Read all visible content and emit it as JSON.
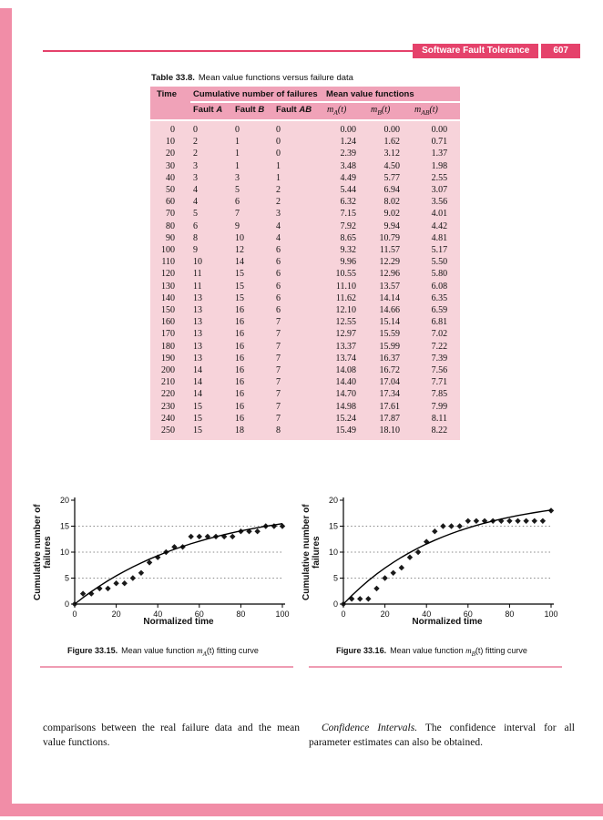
{
  "colors": {
    "accent_dark": "#e5426b",
    "accent_light": "#f18da7",
    "table_header_bg": "#f0a2b8",
    "table_body_bg": "#f7d3da",
    "caption_rule": "#ef9cb3"
  },
  "header": {
    "title": "Software Fault Tolerance",
    "page_number": "607"
  },
  "table": {
    "caption_label": "Table 33.8.",
    "caption_text": "Mean value functions versus failure data",
    "headers": {
      "time": "Time",
      "group_cumulative": "Cumulative number of failures",
      "group_mean": "Mean value functions",
      "fault": [
        {
          "pre": "Fault ",
          "it": "A"
        },
        {
          "pre": "Fault ",
          "it": "B"
        },
        {
          "pre": "Fault ",
          "it": "AB"
        }
      ],
      "math": [
        {
          "base": "m",
          "sub": "A",
          "arg": "(t)"
        },
        {
          "base": "m",
          "sub": "B",
          "arg": "(t)"
        },
        {
          "base": "m",
          "sub": "AB",
          "arg": "(t)"
        }
      ]
    },
    "rows": [
      [
        "0",
        "0",
        "0",
        "0",
        "0.00",
        "0.00",
        "0.00"
      ],
      [
        "10",
        "2",
        "1",
        "0",
        "1.24",
        "1.62",
        "0.71"
      ],
      [
        "20",
        "2",
        "1",
        "0",
        "2.39",
        "3.12",
        "1.37"
      ],
      [
        "30",
        "3",
        "1",
        "1",
        "3.48",
        "4.50",
        "1.98"
      ],
      [
        "40",
        "3",
        "3",
        "1",
        "4.49",
        "5.77",
        "2.55"
      ],
      [
        "50",
        "4",
        "5",
        "2",
        "5.44",
        "6.94",
        "3.07"
      ],
      [
        "60",
        "4",
        "6",
        "2",
        "6.32",
        "8.02",
        "3.56"
      ],
      [
        "70",
        "5",
        "7",
        "3",
        "7.15",
        "9.02",
        "4.01"
      ],
      [
        "80",
        "6",
        "9",
        "4",
        "7.92",
        "9.94",
        "4.42"
      ],
      [
        "90",
        "8",
        "10",
        "4",
        "8.65",
        "10.79",
        "4.81"
      ],
      [
        "100",
        "9",
        "12",
        "6",
        "9.32",
        "11.57",
        "5.17"
      ],
      [
        "110",
        "10",
        "14",
        "6",
        "9.96",
        "12.29",
        "5.50"
      ],
      [
        "120",
        "11",
        "15",
        "6",
        "10.55",
        "12.96",
        "5.80"
      ],
      [
        "130",
        "11",
        "15",
        "6",
        "11.10",
        "13.57",
        "6.08"
      ],
      [
        "140",
        "13",
        "15",
        "6",
        "11.62",
        "14.14",
        "6.35"
      ],
      [
        "150",
        "13",
        "16",
        "6",
        "12.10",
        "14.66",
        "6.59"
      ],
      [
        "160",
        "13",
        "16",
        "7",
        "12.55",
        "15.14",
        "6.81"
      ],
      [
        "170",
        "13",
        "16",
        "7",
        "12.97",
        "15.59",
        "7.02"
      ],
      [
        "180",
        "13",
        "16",
        "7",
        "13.37",
        "15.99",
        "7.22"
      ],
      [
        "190",
        "13",
        "16",
        "7",
        "13.74",
        "16.37",
        "7.39"
      ],
      [
        "200",
        "14",
        "16",
        "7",
        "14.08",
        "16.72",
        "7.56"
      ],
      [
        "210",
        "14",
        "16",
        "7",
        "14.40",
        "17.04",
        "7.71"
      ],
      [
        "220",
        "14",
        "16",
        "7",
        "14.70",
        "17.34",
        "7.85"
      ],
      [
        "230",
        "15",
        "16",
        "7",
        "14.98",
        "17.61",
        "7.99"
      ],
      [
        "240",
        "15",
        "16",
        "7",
        "15.24",
        "17.87",
        "8.11"
      ],
      [
        "250",
        "15",
        "18",
        "8",
        "15.49",
        "18.10",
        "8.22"
      ]
    ]
  },
  "figures": [
    {
      "label": "Figure 33.15.",
      "pre": "Mean value function ",
      "base": "m",
      "sub": "A",
      "post": "(t) fitting curve"
    },
    {
      "label": "Figure 33.16.",
      "pre": "Mean value function ",
      "base": "m",
      "sub": "B",
      "post": "(t) fitting curve"
    }
  ],
  "body_text": {
    "left": "comparisons between the real failure data and the mean value functions.",
    "right_italic": "Confidence Intervals.",
    "right_rest": " The confidence interval for all parameter estimates can also be obtained."
  },
  "chart_data": [
    {
      "type": "scatter",
      "title": "Figure 33.15. Mean value function mA(t) fitting curve",
      "xlabel": "Normalized time",
      "ylabel": "Cumulative number of failures",
      "xlim": [
        0,
        100
      ],
      "ylim": [
        0,
        20
      ],
      "xticks": [
        0,
        20,
        40,
        60,
        80,
        100
      ],
      "yticks": [
        0,
        5,
        10,
        15,
        20
      ],
      "gridlines_y": [
        5,
        10,
        15
      ],
      "grid": "dotted-horizontal",
      "legend": "none",
      "x": [
        0,
        4,
        8,
        12,
        16,
        20,
        24,
        28,
        32,
        36,
        40,
        44,
        48,
        52,
        56,
        60,
        64,
        68,
        72,
        76,
        80,
        84,
        88,
        92,
        96,
        100
      ],
      "series": [
        {
          "name": "Fault A cumulative failures",
          "style": "scatter-diamond",
          "values": [
            0,
            2,
            2,
            3,
            3,
            4,
            4,
            5,
            6,
            8,
            9,
            10,
            11,
            11,
            13,
            13,
            13,
            13,
            13,
            13,
            14,
            14,
            14,
            15,
            15,
            15
          ]
        },
        {
          "name": "mA(t) fitted curve",
          "style": "line",
          "values": [
            0,
            1.24,
            2.39,
            3.48,
            4.49,
            5.44,
            6.32,
            7.15,
            7.92,
            8.65,
            9.32,
            9.96,
            10.55,
            11.1,
            11.62,
            12.1,
            12.55,
            12.97,
            13.37,
            13.74,
            14.08,
            14.4,
            14.7,
            14.98,
            15.24,
            15.49
          ]
        }
      ]
    },
    {
      "type": "scatter",
      "title": "Figure 33.16. Mean value function mB(t) fitting curve",
      "xlabel": "Normalized time",
      "ylabel": "Cumulative number of failures",
      "xlim": [
        0,
        100
      ],
      "ylim": [
        0,
        20
      ],
      "xticks": [
        0,
        20,
        40,
        60,
        80,
        100
      ],
      "yticks": [
        0,
        5,
        10,
        15,
        20
      ],
      "gridlines_y": [
        5,
        10,
        15
      ],
      "grid": "dotted-horizontal",
      "legend": "none",
      "x": [
        0,
        4,
        8,
        12,
        16,
        20,
        24,
        28,
        32,
        36,
        40,
        44,
        48,
        52,
        56,
        60,
        64,
        68,
        72,
        76,
        80,
        84,
        88,
        92,
        96,
        100
      ],
      "series": [
        {
          "name": "Fault B cumulative failures",
          "style": "scatter-diamond",
          "values": [
            0,
            1,
            1,
            1,
            3,
            5,
            6,
            7,
            9,
            10,
            12,
            14,
            15,
            15,
            15,
            16,
            16,
            16,
            16,
            16,
            16,
            16,
            16,
            16,
            16,
            18
          ]
        },
        {
          "name": "mB(t) fitted curve",
          "style": "line",
          "values": [
            0,
            1.62,
            3.12,
            4.5,
            5.77,
            6.94,
            8.02,
            9.02,
            9.94,
            10.79,
            11.57,
            12.29,
            12.96,
            13.57,
            14.14,
            14.66,
            15.14,
            15.59,
            15.99,
            16.37,
            16.72,
            17.04,
            17.34,
            17.61,
            17.87,
            18.1
          ]
        }
      ]
    }
  ]
}
